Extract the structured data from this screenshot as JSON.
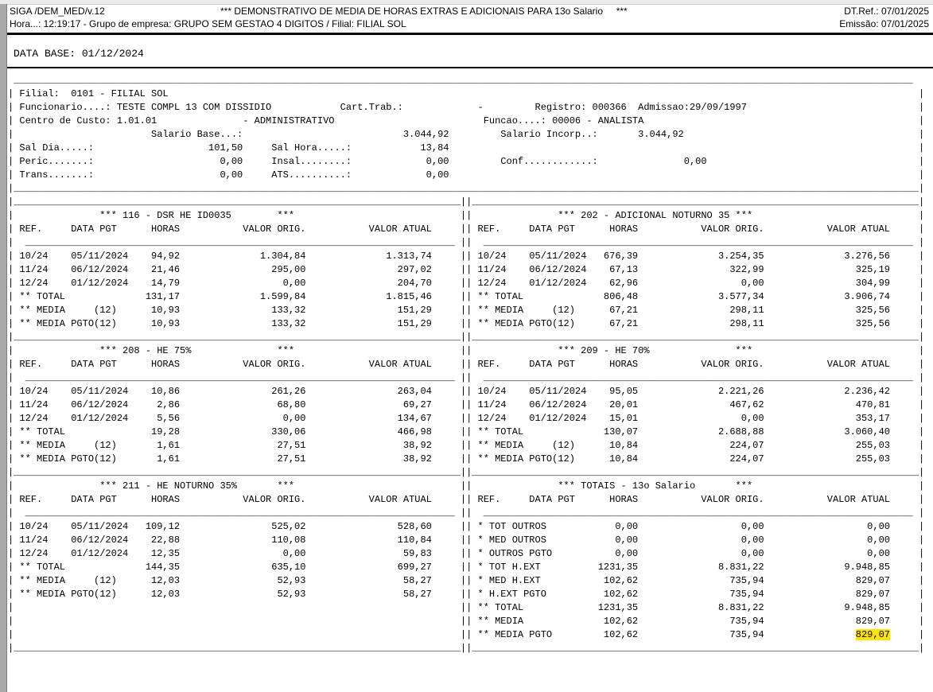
{
  "header": {
    "app_id": "SIGA /DEM_MED/v.12",
    "title": "*** DEMONSTRATIVO DE MEDIA DE HORAS EXTRAS E ADICIONAIS PARA 13o Salario     ***",
    "dt_ref": "DT.Ref.: 07/01/2025",
    "line2": "Hora...: 12:19:17 - Grupo de empresa: GRUPO SEM GESTAO 4 DIGITOS / Filial: FILIAL SOL",
    "emissao": "Emissão: 07/01/2025"
  },
  "data_base": "DATA BASE: 01/12/2024",
  "colors": {
    "highlight": "#ffe400"
  },
  "employee": {
    "labels": {
      "filial": "Filial:",
      "funcionario": "Funcionario....:",
      "cart_trab": "Cart.Trab.:",
      "registro": "Registro:",
      "admissao": "Admissao:",
      "centro_de_custo": "Centro de Custo:",
      "funcao": "Funcao....:",
      "salario_base": "Salario Base...:",
      "salario_incorp": "Salario Incorp..:",
      "sal_dia": "Sal Dia.....:",
      "sal_hora": "Sal Hora.....:",
      "peric": "Peric.......:",
      "insal": "Insal........:",
      "conf": "Conf............:",
      "trans": "Trans.......:",
      "ats": "ATS..........:"
    },
    "filial": "0101 - FILIAL SOL",
    "funcionario": "TESTE COMPL 13 COM DISSIDIO",
    "cart_trab": "-",
    "registro": "000366",
    "admissao": "29/09/1997",
    "centro_de_custo": "1.01.01",
    "centro_de_custo_desc": "ADMINISTRATIVO",
    "funcao": "00006 - ANALISTA",
    "salario_base": "3.044,92",
    "salario_incorp": "3.044,92",
    "sal_dia": "101,50",
    "sal_hora": "13,84",
    "peric": "0,00",
    "insal": "0,00",
    "conf": "0,00",
    "trans": "0,00",
    "ats": "0,00"
  },
  "sections": [
    {
      "title": "116 - DSR HE ID0035",
      "columns": [
        "REF.",
        "DATA PGT",
        "HORAS",
        "VALOR ORIG.",
        "VALOR ATUAL"
      ],
      "rows": [
        {
          "ref": "10/24",
          "data_pgt": "05/11/2024",
          "horas": "94,92",
          "valor_orig": "1.304,84",
          "valor_atual": "1.313,74"
        },
        {
          "ref": "11/24",
          "data_pgt": "06/12/2024",
          "horas": "21,46",
          "valor_orig": "295,00",
          "valor_atual": "297,02"
        },
        {
          "ref": "12/24",
          "data_pgt": "01/12/2024",
          "horas": "14,79",
          "valor_orig": "0,00",
          "valor_atual": "204,70"
        },
        {
          "ref": "** TOTAL",
          "data_pgt": "",
          "horas": "131,17",
          "valor_orig": "1.599,84",
          "valor_atual": "1.815,46"
        },
        {
          "ref": "** MEDIA     (12)",
          "data_pgt": "",
          "horas": "10,93",
          "valor_orig": "133,32",
          "valor_atual": "151,29"
        },
        {
          "ref": "** MEDIA PGTO(12)",
          "data_pgt": "",
          "horas": "10,93",
          "valor_orig": "133,32",
          "valor_atual": "151,29"
        }
      ]
    },
    {
      "title": "202 - ADICIONAL NOTURNO 35",
      "columns": [
        "REF.",
        "DATA PGT",
        "HORAS",
        "VALOR ORIG.",
        "VALOR ATUAL"
      ],
      "rows": [
        {
          "ref": "10/24",
          "data_pgt": "05/11/2024",
          "horas": "676,39",
          "valor_orig": "3.254,35",
          "valor_atual": "3.276,56"
        },
        {
          "ref": "11/24",
          "data_pgt": "06/12/2024",
          "horas": "67,13",
          "valor_orig": "322,99",
          "valor_atual": "325,19"
        },
        {
          "ref": "12/24",
          "data_pgt": "01/12/2024",
          "horas": "62,96",
          "valor_orig": "0,00",
          "valor_atual": "304,99"
        },
        {
          "ref": "** TOTAL",
          "data_pgt": "",
          "horas": "806,48",
          "valor_orig": "3.577,34",
          "valor_atual": "3.906,74"
        },
        {
          "ref": "** MEDIA     (12)",
          "data_pgt": "",
          "horas": "67,21",
          "valor_orig": "298,11",
          "valor_atual": "325,56"
        },
        {
          "ref": "** MEDIA PGTO(12)",
          "data_pgt": "",
          "horas": "67,21",
          "valor_orig": "298,11",
          "valor_atual": "325,56"
        }
      ]
    },
    {
      "title": "208 - HE 75%",
      "columns": [
        "REF.",
        "DATA PGT",
        "HORAS",
        "VALOR ORIG.",
        "VALOR ATUAL"
      ],
      "rows": [
        {
          "ref": "10/24",
          "data_pgt": "05/11/2024",
          "horas": "10,86",
          "valor_orig": "261,26",
          "valor_atual": "263,04"
        },
        {
          "ref": "11/24",
          "data_pgt": "06/12/2024",
          "horas": "2,86",
          "valor_orig": "68,80",
          "valor_atual": "69,27"
        },
        {
          "ref": "12/24",
          "data_pgt": "01/12/2024",
          "horas": "5,56",
          "valor_orig": "0,00",
          "valor_atual": "134,67"
        },
        {
          "ref": "** TOTAL",
          "data_pgt": "",
          "horas": "19,28",
          "valor_orig": "330,06",
          "valor_atual": "466,98"
        },
        {
          "ref": "** MEDIA     (12)",
          "data_pgt": "",
          "horas": "1,61",
          "valor_orig": "27,51",
          "valor_atual": "38,92"
        },
        {
          "ref": "** MEDIA PGTO(12)",
          "data_pgt": "",
          "horas": "1,61",
          "valor_orig": "27,51",
          "valor_atual": "38,92"
        }
      ]
    },
    {
      "title": "209 - HE 70%",
      "columns": [
        "REF.",
        "DATA PGT",
        "HORAS",
        "VALOR ORIG.",
        "VALOR ATUAL"
      ],
      "rows": [
        {
          "ref": "10/24",
          "data_pgt": "05/11/2024",
          "horas": "95,05",
          "valor_orig": "2.221,26",
          "valor_atual": "2.236,42"
        },
        {
          "ref": "11/24",
          "data_pgt": "06/12/2024",
          "horas": "20,01",
          "valor_orig": "467,62",
          "valor_atual": "470,81"
        },
        {
          "ref": "12/24",
          "data_pgt": "01/12/2024",
          "horas": "15,01",
          "valor_orig": "0,00",
          "valor_atual": "353,17"
        },
        {
          "ref": "** TOTAL",
          "data_pgt": "",
          "horas": "130,07",
          "valor_orig": "2.688,88",
          "valor_atual": "3.060,40"
        },
        {
          "ref": "** MEDIA     (12)",
          "data_pgt": "",
          "horas": "10,84",
          "valor_orig": "224,07",
          "valor_atual": "255,03"
        },
        {
          "ref": "** MEDIA PGTO(12)",
          "data_pgt": "",
          "horas": "10,84",
          "valor_orig": "224,07",
          "valor_atual": "255,03"
        }
      ]
    },
    {
      "title": "211 - HE NOTURNO 35%",
      "columns": [
        "REF.",
        "DATA PGT",
        "HORAS",
        "VALOR ORIG.",
        "VALOR ATUAL"
      ],
      "rows": [
        {
          "ref": "10/24",
          "data_pgt": "05/11/2024",
          "horas": "109,12",
          "valor_orig": "525,02",
          "valor_atual": "528,60"
        },
        {
          "ref": "11/24",
          "data_pgt": "06/12/2024",
          "horas": "22,88",
          "valor_orig": "110,08",
          "valor_atual": "110,84"
        },
        {
          "ref": "12/24",
          "data_pgt": "01/12/2024",
          "horas": "12,35",
          "valor_orig": "0,00",
          "valor_atual": "59,83"
        },
        {
          "ref": "** TOTAL",
          "data_pgt": "",
          "horas": "144,35",
          "valor_orig": "635,10",
          "valor_atual": "699,27"
        },
        {
          "ref": "** MEDIA     (12)",
          "data_pgt": "",
          "horas": "12,03",
          "valor_orig": "52,93",
          "valor_atual": "58,27"
        },
        {
          "ref": "** MEDIA PGTO(12)",
          "data_pgt": "",
          "horas": "12,03",
          "valor_orig": "52,93",
          "valor_atual": "58,27"
        }
      ]
    },
    {
      "title": "TOTAIS - 13o Salario",
      "columns": [
        "REF.",
        "DATA PGT",
        "HORAS",
        "VALOR ORIG.",
        "VALOR ATUAL"
      ],
      "rows": [
        {
          "ref": "* TOT OUTROS",
          "data_pgt": "",
          "horas": "0,00",
          "valor_orig": "0,00",
          "valor_atual": "0,00"
        },
        {
          "ref": "* MED OUTROS",
          "data_pgt": "",
          "horas": "0,00",
          "valor_orig": "0,00",
          "valor_atual": "0,00"
        },
        {
          "ref": "* OUTROS PGTO",
          "data_pgt": "",
          "horas": "0,00",
          "valor_orig": "0,00",
          "valor_atual": "0,00"
        },
        {
          "ref": "* TOT H.EXT",
          "data_pgt": "",
          "horas": "1231,35",
          "valor_orig": "8.831,22",
          "valor_atual": "9.948,85"
        },
        {
          "ref": "* MED H.EXT",
          "data_pgt": "",
          "horas": "102,62",
          "valor_orig": "735,94",
          "valor_atual": "829,07"
        },
        {
          "ref": "* H.EXT PGTO",
          "data_pgt": "",
          "horas": "102,62",
          "valor_orig": "735,94",
          "valor_atual": "829,07"
        },
        {
          "ref": "** TOTAL",
          "data_pgt": "",
          "horas": "1231,35",
          "valor_orig": "8.831,22",
          "valor_atual": "9.948,85"
        },
        {
          "ref": "** MEDIA",
          "data_pgt": "",
          "horas": "102,62",
          "valor_orig": "735,94",
          "valor_atual": "829,07"
        },
        {
          "ref": "** MEDIA PGTO",
          "data_pgt": "",
          "horas": "102,62",
          "valor_orig": "735,94",
          "valor_atual": "829,07",
          "highlight": true
        }
      ]
    }
  ]
}
